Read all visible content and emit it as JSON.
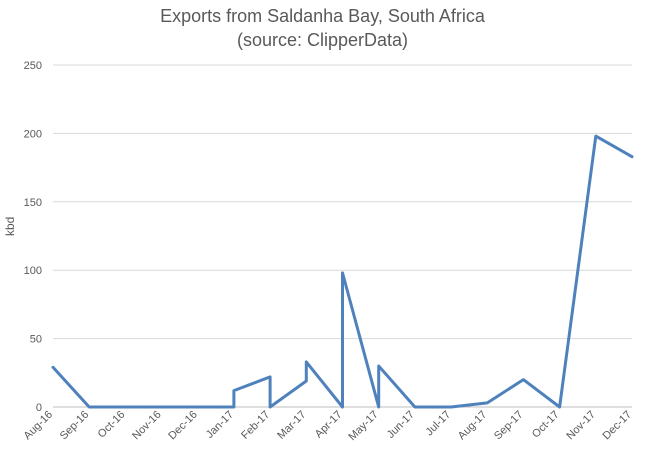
{
  "chart_data": {
    "type": "line",
    "title": "Exports from Saldanha Bay, South Africa",
    "subtitle": "(source: ClipperData)",
    "xlabel": "",
    "ylabel": "kbd",
    "ylim": [
      0,
      250
    ],
    "yticks": [
      0,
      50,
      100,
      150,
      200,
      250
    ],
    "grid": true,
    "legend": "none",
    "categories": [
      "Aug-16",
      "Sep-16",
      "Oct-16",
      "Nov-16",
      "Dec-16",
      "Jan-17",
      "Feb-17",
      "Mar-17",
      "Apr-17",
      "May-17",
      "Jun-17",
      "Jul-17",
      "Aug-17",
      "Sep-17",
      "Oct-17",
      "Nov-17",
      "Dec-17"
    ],
    "series": [
      {
        "color": "#4f81bd",
        "points": [
          {
            "x": "Aug-16",
            "y": 29
          },
          {
            "x": "Sep-16",
            "y": 0
          },
          {
            "x": "Oct-16",
            "y": 0
          },
          {
            "x": "Nov-16",
            "y": 0
          },
          {
            "x": "Dec-16",
            "y": 0
          },
          {
            "x": "Jan-17",
            "y": 0
          },
          {
            "x": "Jan-17",
            "y": 12
          },
          {
            "x": "Feb-17",
            "y": 22
          },
          {
            "x": "Feb-17",
            "y": 0
          },
          {
            "x": "Mar-17",
            "y": 19
          },
          {
            "x": "Mar-17",
            "y": 33
          },
          {
            "x": "Apr-17",
            "y": 0
          },
          {
            "x": "Apr-17",
            "y": 98
          },
          {
            "x": "May-17",
            "y": 0
          },
          {
            "x": "May-17",
            "y": 30
          },
          {
            "x": "Jun-17",
            "y": 0
          },
          {
            "x": "Jul-17",
            "y": 0
          },
          {
            "x": "Aug-17",
            "y": 3
          },
          {
            "x": "Sep-17",
            "y": 20
          },
          {
            "x": "Oct-17",
            "y": 0
          },
          {
            "x": "Nov-17",
            "y": 198
          },
          {
            "x": "Dec-17",
            "y": 183
          }
        ]
      }
    ]
  }
}
